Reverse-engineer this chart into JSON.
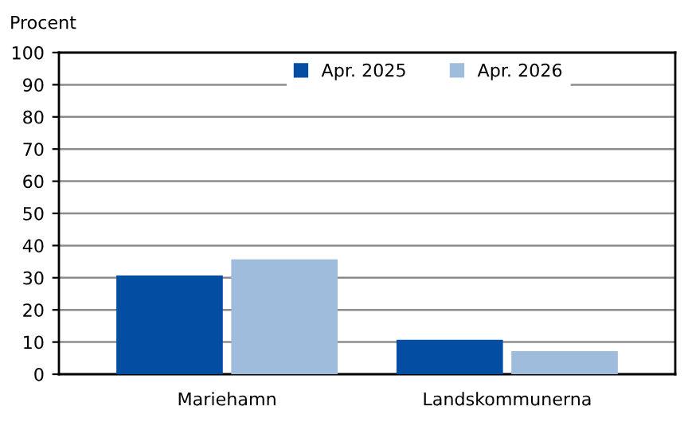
{
  "chart_data": {
    "type": "bar",
    "ylabel": "Procent",
    "categories": [
      "Mariehamn",
      "Landskommunerna"
    ],
    "series": [
      {
        "name": "Apr. 2025",
        "color": "#034ea2",
        "values": [
          30.7,
          10.7
        ]
      },
      {
        "name": "Apr. 2026",
        "color": "#a0bcdc",
        "values": [
          35.7,
          7.2
        ]
      }
    ],
    "ylim": [
      0,
      100
    ],
    "yticks": [
      0,
      10,
      20,
      30,
      40,
      50,
      60,
      70,
      80,
      90,
      100
    ],
    "grid": "y",
    "legend": "top"
  }
}
